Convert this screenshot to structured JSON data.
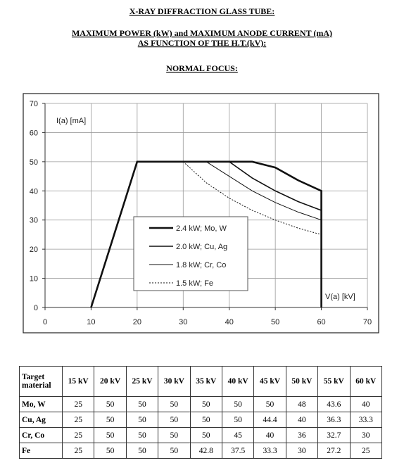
{
  "header": {
    "title": "X-RAY DIFFRACTION GLASS TUBE:",
    "subtitle_lines": [
      "MAXIMUM POWER (kW) and MAXIMUM ANODE CURRENT (mA)",
      "AS FUNCTION OF THE H.T.(kV):"
    ],
    "section": "NORMAL FOCUS:"
  },
  "chart_data": {
    "type": "line",
    "y_label": "I(a) [mA]",
    "x_label": "V(a) [kV]",
    "xlim": [
      0,
      70
    ],
    "ylim": [
      0,
      70
    ],
    "xticks": [
      0,
      10,
      20,
      30,
      40,
      50,
      60,
      70
    ],
    "yticks": [
      0,
      10,
      20,
      30,
      40,
      50,
      60,
      70
    ],
    "grid": true,
    "legend": "center",
    "series": [
      {
        "name": "2.4 kW; Mo, W",
        "color": "#111111",
        "linestyle": "solid",
        "x": [
          10,
          15,
          20,
          25,
          30,
          35,
          40,
          45,
          50,
          55,
          60,
          60
        ],
        "values": [
          0,
          25,
          50,
          50,
          50,
          50,
          50,
          50,
          48,
          43.6,
          40,
          0
        ]
      },
      {
        "name": "2.0 kW; Cu, Ag",
        "color": "#111111",
        "linestyle": "solid",
        "x": [
          40,
          45,
          50,
          55,
          60
        ],
        "values": [
          50,
          44.4,
          40,
          36.3,
          33.3
        ]
      },
      {
        "name": "1.8 kW; Cr, Co",
        "color": "#111111",
        "linestyle": "solid",
        "x": [
          35,
          40,
          45,
          50,
          55,
          60
        ],
        "values": [
          50,
          45,
          40,
          36,
          32.7,
          30
        ]
      },
      {
        "name": "1.5 kW; Fe",
        "color": "#111111",
        "linestyle": "dotted",
        "x": [
          30,
          35,
          40,
          45,
          50,
          55,
          60
        ],
        "values": [
          50,
          42.8,
          37.5,
          33.3,
          30,
          27.2,
          25
        ]
      }
    ]
  },
  "table": {
    "columns": [
      "Target material",
      "15 kV",
      "20 kV",
      "25 kV",
      "30 kV",
      "35 kV",
      "40 kV",
      "45 kV",
      "50 kV",
      "55 kV",
      "60 kV"
    ],
    "rows": [
      [
        "Mo, W",
        25,
        50,
        50,
        50,
        50,
        50,
        50,
        48,
        43.6,
        40
      ],
      [
        "Cu, Ag",
        25,
        50,
        50,
        50,
        50,
        50,
        44.4,
        40,
        36.3,
        33.3
      ],
      [
        "Cr, Co",
        25,
        50,
        50,
        50,
        50,
        45,
        40,
        36,
        32.7,
        30
      ],
      [
        "Fe",
        25,
        50,
        50,
        50,
        42.8,
        37.5,
        33.3,
        30,
        27.2,
        25
      ]
    ]
  }
}
